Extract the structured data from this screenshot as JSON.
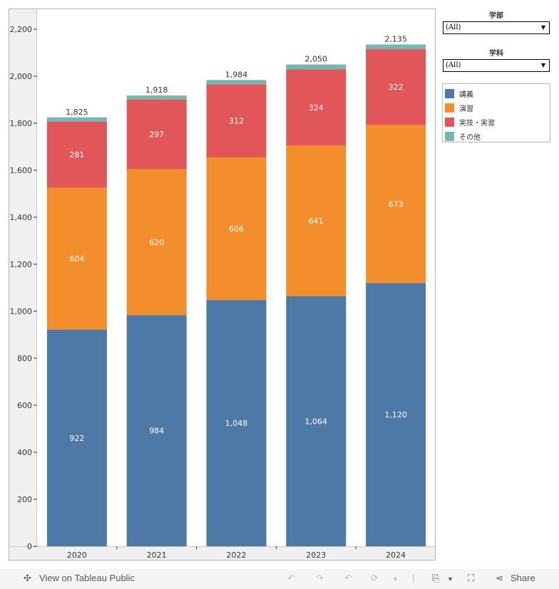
{
  "chart_data": {
    "type": "bar",
    "stacked": true,
    "categories": [
      "2020",
      "2021",
      "2022",
      "2023",
      "2024"
    ],
    "series": [
      {
        "name": "講義",
        "color": "#4e79a7",
        "values": [
          922,
          984,
          1048,
          1064,
          1120
        ]
      },
      {
        "name": "演習",
        "color": "#f28e2b",
        "values": [
          604,
          620,
          606,
          641,
          673
        ]
      },
      {
        "name": "実技・実習",
        "color": "#e15759",
        "values": [
          281,
          297,
          312,
          324,
          322
        ]
      },
      {
        "name": "その他",
        "color": "#76b7b2",
        "values": [
          18,
          17,
          18,
          21,
          20
        ]
      }
    ],
    "totals": [
      "1,825",
      "1,918",
      "1,984",
      "2,050",
      "2,135"
    ],
    "value_labels": [
      [
        "922",
        "984",
        "1,048",
        "1,064",
        "1,120"
      ],
      [
        "604",
        "620",
        "606",
        "641",
        "673"
      ],
      [
        "281",
        "297",
        "312",
        "324",
        "322"
      ]
    ],
    "yticks": [
      0,
      200,
      400,
      600,
      800,
      1000,
      1200,
      1400,
      1600,
      1800,
      2000,
      2200
    ],
    "ytick_labels": [
      "0",
      "200",
      "400",
      "600",
      "800",
      "1,000",
      "1,200",
      "1,400",
      "1,600",
      "1,800",
      "2,000",
      "2,200"
    ],
    "ylim": [
      0,
      2285
    ],
    "title": "",
    "xlabel": "",
    "ylabel": "",
    "grid": false,
    "legend_position": "right"
  },
  "filters": [
    {
      "title": "学部",
      "value": "(All)"
    },
    {
      "title": "学科",
      "value": "(All)"
    }
  ],
  "legend": [
    {
      "label": "講義",
      "color": "#4e79a7"
    },
    {
      "label": "演習",
      "color": "#f28e2b"
    },
    {
      "label": "実技・実習",
      "color": "#e15759"
    },
    {
      "label": "その他",
      "color": "#76b7b2"
    }
  ],
  "toolbar": {
    "view_label": "View on Tableau Public",
    "share_label": "Share"
  }
}
